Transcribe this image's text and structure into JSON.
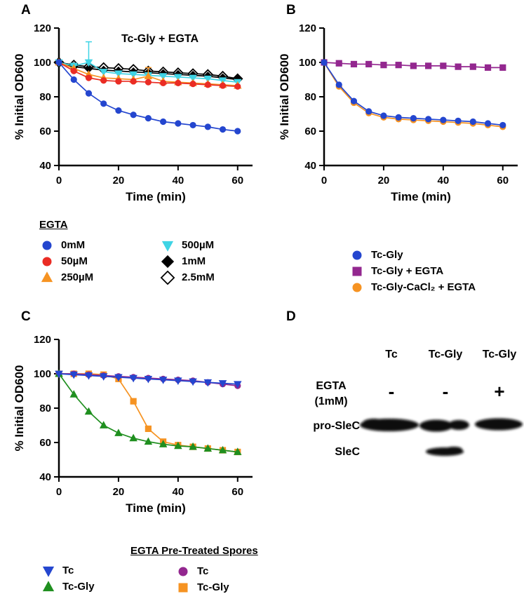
{
  "figure": {
    "panels": [
      {
        "label": "A"
      },
      {
        "label": "B"
      },
      {
        "label": "C"
      },
      {
        "label": "D"
      }
    ]
  },
  "chart_data": [
    {
      "type": "line",
      "panel": "A",
      "title": "Tc-Gly + EGTA",
      "xlabel": "Time (min)",
      "ylabel": "% Initial OD600",
      "xlim": [
        0,
        65
      ],
      "ylim": [
        40,
        120
      ],
      "xticks": [
        0,
        20,
        40,
        60
      ],
      "yticks": [
        40,
        60,
        80,
        100,
        120
      ],
      "grid": false,
      "legend_position": "below",
      "legend_header": "EGTA",
      "x": [
        0,
        5,
        10,
        15,
        20,
        25,
        30,
        35,
        40,
        45,
        50,
        55,
        60
      ],
      "series": [
        {
          "name": "0mM",
          "color": "#2446cf",
          "marker": "circle",
          "values": [
            100,
            90,
            82,
            76,
            72,
            69.5,
            67.5,
            65.5,
            64.5,
            63.5,
            62.5,
            61,
            60
          ]
        },
        {
          "name": "50µM",
          "color": "#ea2c24",
          "marker": "circle",
          "values": [
            100,
            95,
            91,
            89.5,
            89,
            89,
            88.5,
            88,
            88,
            87.5,
            87,
            86.5,
            86
          ]
        },
        {
          "name": "250µM",
          "color": "#f69322",
          "marker": "triangle-up",
          "values": [
            100,
            96.5,
            93,
            91,
            90.5,
            90,
            92,
            89,
            88.5,
            88,
            87.5,
            87,
            86.5
          ],
          "err": {
            "6": 5
          }
        },
        {
          "name": "500µM",
          "color": "#3fd4e5",
          "marker": "triangle-down",
          "values": [
            100,
            98,
            100,
            94.5,
            93.5,
            93,
            92.5,
            92,
            91.5,
            91,
            90.5,
            89.5,
            88.5
          ],
          "err": {
            "2": 12
          }
        },
        {
          "name": "1mM",
          "color": "#000000",
          "marker": "diamond",
          "values": [
            100,
            97.5,
            96.5,
            95.5,
            95,
            94.5,
            94,
            93.5,
            93,
            92.5,
            92,
            91,
            90
          ]
        },
        {
          "name": "2.5mM",
          "color": "#000000",
          "marker": "diamond-open",
          "values": [
            100,
            98.5,
            97.5,
            97,
            96.5,
            96,
            95,
            94.5,
            94,
            93.5,
            93,
            92,
            90.5
          ]
        }
      ]
    },
    {
      "type": "line",
      "panel": "B",
      "title": "",
      "xlabel": "Time (min)",
      "ylabel": "% Initial OD600",
      "xlim": [
        0,
        65
      ],
      "ylim": [
        40,
        120
      ],
      "xticks": [
        0,
        20,
        40,
        60
      ],
      "yticks": [
        40,
        60,
        80,
        100,
        120
      ],
      "grid": false,
      "legend_position": "below",
      "x": [
        0,
        5,
        10,
        15,
        20,
        25,
        30,
        35,
        40,
        45,
        50,
        55,
        60
      ],
      "series": [
        {
          "name": "Tc-Gly",
          "color": "#2446cf",
          "marker": "circle",
          "values": [
            100,
            87,
            77.5,
            71.5,
            69,
            68,
            67.5,
            67,
            66.5,
            66,
            65.5,
            64.5,
            63.5
          ]
        },
        {
          "name": "Tc-Gly + EGTA",
          "color": "#93278f",
          "marker": "square",
          "values": [
            100,
            99.5,
            99,
            99,
            98.5,
            98.5,
            98,
            98,
            98,
            97.5,
            97.5,
            97,
            97
          ]
        },
        {
          "name": "Tc-Gly-CaCl₂ + EGTA",
          "color": "#f69322",
          "marker": "circle",
          "values": [
            100,
            86,
            76.5,
            70.5,
            68,
            67,
            66.5,
            66,
            65.5,
            65,
            64.5,
            63.5,
            62.5
          ]
        }
      ]
    },
    {
      "type": "line",
      "panel": "C",
      "title": "",
      "xlabel": "Time (min)",
      "ylabel": "% Initial OD600",
      "xlim": [
        0,
        65
      ],
      "ylim": [
        40,
        120
      ],
      "xticks": [
        0,
        20,
        40,
        60
      ],
      "yticks": [
        40,
        60,
        80,
        100,
        120
      ],
      "grid": false,
      "legend_position": "below",
      "legend_group_header": "EGTA Pre-Treated Spores",
      "x": [
        0,
        5,
        10,
        15,
        20,
        25,
        30,
        35,
        40,
        45,
        50,
        55,
        60
      ],
      "series": [
        {
          "name": "Tc",
          "color": "#2446cf",
          "marker": "triangle-down",
          "values": [
            100,
            99.5,
            99,
            98.5,
            98,
            97.5,
            97,
            96.5,
            96,
            95.5,
            95,
            94.5,
            94
          ]
        },
        {
          "name": "Tc-Gly",
          "color": "#1f8f1f",
          "marker": "triangle-up",
          "values": [
            100,
            88,
            78,
            70,
            65.5,
            62.5,
            60.5,
            59,
            58,
            57.5,
            56.5,
            55.5,
            54.5
          ]
        },
        {
          "name": "Tc",
          "color": "#93278f",
          "marker": "circle",
          "group": "EGTA Pre-Treated Spores",
          "values": [
            100,
            100,
            99.5,
            99,
            98.5,
            98,
            97.5,
            97,
            96.5,
            96,
            95,
            94,
            93
          ]
        },
        {
          "name": "Tc-Gly",
          "color": "#f69322",
          "marker": "square",
          "group": "EGTA Pre-Treated Spores",
          "values": [
            100,
            100,
            100,
            99.5,
            97,
            84,
            68,
            60.5,
            58.5,
            57.5,
            56.5,
            55.5,
            54.5
          ]
        }
      ]
    }
  ],
  "blot": {
    "col_headers": [
      "Tc",
      "Tc-Gly",
      "Tc-Gly"
    ],
    "treatment_line1": "EGTA",
    "treatment_line2": "(1mM)",
    "treatment_values": [
      "-",
      "-",
      "+"
    ],
    "row_labels": [
      "pro-SleC",
      "SleC"
    ],
    "bands": {
      "pro_slec": [
        true,
        true,
        true
      ],
      "slec": [
        false,
        true,
        false
      ]
    }
  }
}
